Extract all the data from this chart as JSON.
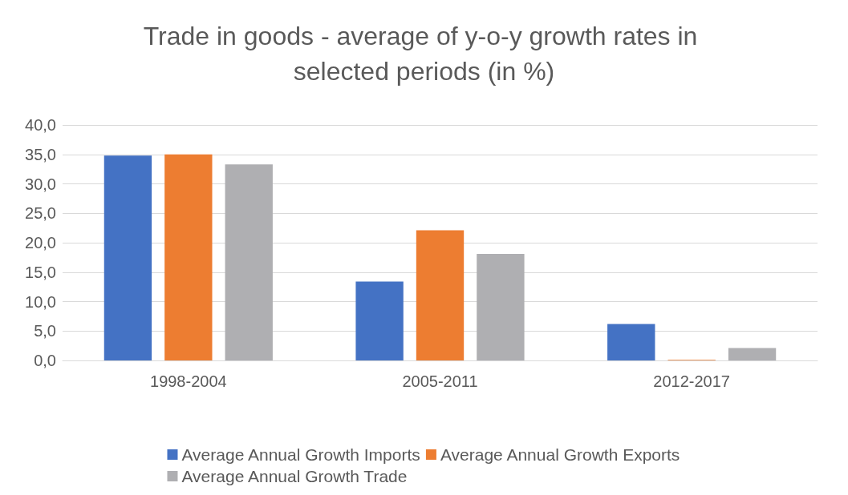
{
  "chart_data": {
    "type": "bar",
    "title": "Trade in goods - average of y-o-y growth rates in selected periods (in %)",
    "categories": [
      "1998-2004",
      "2005-2011",
      "2012-2017"
    ],
    "series": [
      {
        "name": "Average Annual Growth Imports",
        "color": "#4472c4",
        "values": [
          34.8,
          13.4,
          6.2
        ]
      },
      {
        "name": "Average Annual Growth Exports",
        "color": "#ed7d31",
        "values": [
          35.0,
          22.1,
          0.1
        ]
      },
      {
        "name": "Average Annual Growth Trade",
        "color": "#afafb2",
        "values": [
          33.3,
          18.1,
          2.1
        ]
      }
    ],
    "ylim": [
      0,
      40
    ],
    "yticks": [
      {
        "value": 0,
        "label": "0,0"
      },
      {
        "value": 5,
        "label": "5,0"
      },
      {
        "value": 10,
        "label": "10,0"
      },
      {
        "value": 15,
        "label": "15,0"
      },
      {
        "value": 20,
        "label": "20,0"
      },
      {
        "value": 25,
        "label": "25,0"
      },
      {
        "value": 30,
        "label": "30,0"
      },
      {
        "value": 35,
        "label": "35,0"
      },
      {
        "value": 40,
        "label": "40,0"
      }
    ],
    "grid": "y",
    "legend": "bottom"
  }
}
